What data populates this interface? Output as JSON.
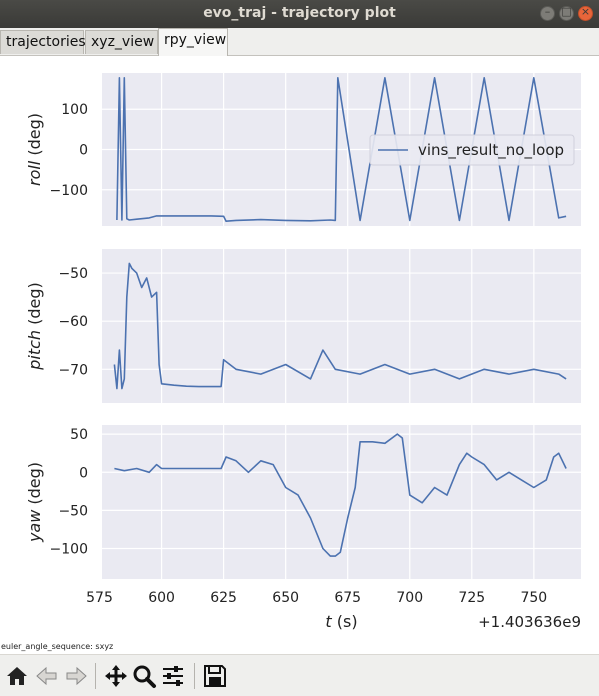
{
  "window": {
    "title": "evo_traj - trajectory plot"
  },
  "tabs": [
    {
      "label": "trajectories",
      "active": false
    },
    {
      "label": "xyz_view",
      "active": false
    },
    {
      "label": "rpy_view",
      "active": true
    }
  ],
  "status": {
    "text": "euler_angle_sequence: sxyz"
  },
  "toolbar": {
    "buttons": [
      "home-icon",
      "back-icon",
      "forward-icon",
      "pan-icon",
      "zoom-icon",
      "configure-subplots-icon",
      "save-icon"
    ]
  },
  "colors": {
    "line": "#4c72b0",
    "axes_bg": "#eaeaf2",
    "grid": "#ffffff"
  },
  "chart_data": [
    {
      "type": "line",
      "ylabel_var": "roll",
      "ylabel_unit": "(deg)",
      "ylim": [
        -190,
        190
      ],
      "yticks": [
        100,
        0,
        -100
      ],
      "ytick_labels": [
        "100",
        "0",
        "−100"
      ],
      "legend": "vins_result_no_loop",
      "legend_position": "upper-right",
      "series": [
        {
          "name": "vins_result_no_loop",
          "x": [
            582,
            583,
            584,
            585,
            586,
            587,
            590,
            595,
            598,
            600,
            610,
            620,
            625,
            626,
            630,
            640,
            650,
            660,
            668,
            670,
            671,
            680,
            690,
            700,
            710,
            720,
            730,
            740,
            750,
            760,
            763
          ],
          "y": [
            -175,
            178,
            -175,
            178,
            -172,
            -175,
            -173,
            -170,
            -165,
            -165,
            -165,
            -165,
            -166,
            -178,
            -176,
            -174,
            -176,
            -177,
            -175,
            -176,
            178,
            -176,
            178,
            -176,
            178,
            -176,
            178,
            -176,
            178,
            -170,
            -166
          ]
        }
      ]
    },
    {
      "type": "line",
      "ylabel_var": "pitch",
      "ylabel_unit": "(deg)",
      "ylim": [
        -77,
        -45
      ],
      "yticks": [
        -50,
        -60,
        -70
      ],
      "ytick_labels": [
        "−50",
        "−60",
        "−70"
      ],
      "series": [
        {
          "name": "vins_result_no_loop",
          "x": [
            581,
            582,
            583,
            584,
            585,
            586,
            587,
            588,
            590,
            592,
            594,
            596,
            598,
            599,
            600,
            605,
            610,
            615,
            620,
            624,
            625,
            630,
            640,
            650,
            660,
            665,
            670,
            680,
            690,
            700,
            710,
            720,
            730,
            740,
            750,
            760,
            763
          ],
          "y": [
            -69,
            -74,
            -66,
            -74,
            -72,
            -55,
            -48,
            -49,
            -50,
            -53,
            -51,
            -55,
            -54,
            -69,
            -73,
            -73.3,
            -73.5,
            -73.6,
            -73.6,
            -73.6,
            -68,
            -70,
            -71,
            -69,
            -72,
            -66,
            -70,
            -71,
            -69,
            -71,
            -70,
            -72,
            -70,
            -71,
            -70,
            -71,
            -72
          ]
        }
      ]
    },
    {
      "type": "line",
      "ylabel_var": "yaw",
      "ylabel_unit": "(deg)",
      "ylim": [
        -140,
        62
      ],
      "yticks": [
        50,
        0,
        -50,
        -100
      ],
      "ytick_labels": [
        "50",
        "0",
        "−50",
        "−100"
      ],
      "xlim": [
        576,
        769
      ],
      "xticks": [
        575,
        600,
        625,
        650,
        675,
        700,
        725,
        750
      ],
      "xtick_labels": [
        "575",
        "600",
        "625",
        "650",
        "675",
        "700",
        "725",
        "750"
      ],
      "xlabel_var": "t",
      "xlabel_unit": "(s)",
      "offset_text": "+1.403636e9",
      "series": [
        {
          "name": "vins_result_no_loop",
          "x": [
            581,
            585,
            590,
            595,
            598,
            600,
            610,
            620,
            624,
            626,
            630,
            635,
            640,
            645,
            650,
            655,
            660,
            665,
            668,
            670,
            672,
            675,
            678,
            680,
            685,
            690,
            695,
            697,
            700,
            705,
            710,
            715,
            720,
            723,
            725,
            730,
            735,
            740,
            745,
            750,
            755,
            758,
            760,
            763
          ],
          "y": [
            5,
            2,
            5,
            0,
            10,
            5,
            5,
            5,
            5,
            20,
            15,
            0,
            15,
            10,
            -20,
            -30,
            -60,
            -100,
            -110,
            -110,
            -105,
            -60,
            -20,
            40,
            40,
            38,
            50,
            45,
            -30,
            -40,
            -20,
            -30,
            10,
            25,
            20,
            10,
            -10,
            0,
            -10,
            -20,
            -10,
            20,
            25,
            5
          ]
        }
      ]
    }
  ]
}
